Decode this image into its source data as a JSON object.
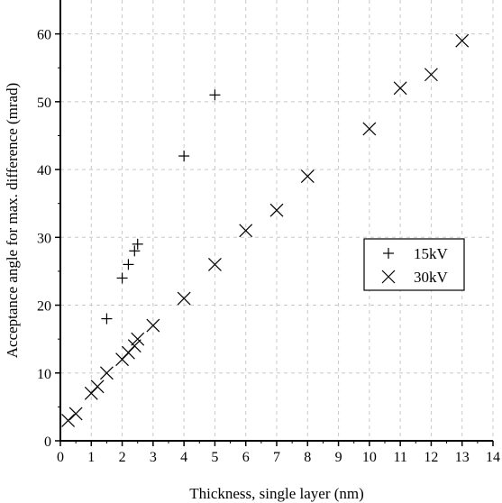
{
  "chart_data": {
    "type": "scatter",
    "title": "",
    "xlabel": "Thickness, single layer (nm)",
    "ylabel": "Acceptance angle for max. difference (mrad)",
    "xlim": [
      0,
      14
    ],
    "ylim": [
      0,
      65
    ],
    "xticks": [
      0,
      1,
      2,
      3,
      4,
      5,
      6,
      7,
      8,
      9,
      10,
      11,
      12,
      13,
      14
    ],
    "yticks": [
      0,
      10,
      20,
      30,
      40,
      50,
      60
    ],
    "grid": true,
    "legend_position": "right-middle",
    "series": [
      {
        "name": "15kV",
        "marker": "plus",
        "x": [
          1.5,
          2.0,
          2.2,
          2.4,
          2.5,
          4.0,
          5.0
        ],
        "y": [
          18,
          24,
          26,
          28,
          29,
          42,
          51
        ]
      },
      {
        "name": "30kV",
        "marker": "cross",
        "x": [
          0.25,
          0.5,
          1.0,
          1.2,
          1.5,
          2.0,
          2.2,
          2.4,
          2.5,
          3.0,
          4.0,
          5.0,
          6.0,
          7.0,
          8.0,
          10.0,
          11.0,
          12.0,
          13.0
        ],
        "y": [
          3,
          4,
          7,
          8,
          10,
          12,
          13,
          14,
          15,
          17,
          21,
          26,
          31,
          34,
          39,
          46,
          52,
          54,
          59
        ]
      }
    ]
  }
}
